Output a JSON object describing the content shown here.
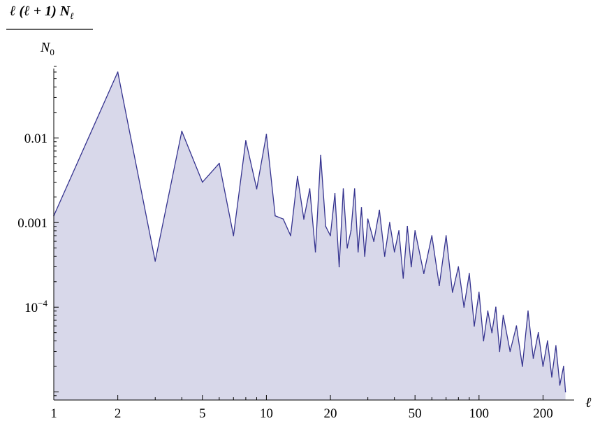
{
  "chart_data": {
    "type": "area",
    "scale": {
      "x": "log",
      "y": "log"
    },
    "xlim": [
      1,
      260
    ],
    "ylim": [
      8e-06,
      0.07
    ],
    "grid": false,
    "legend": "none",
    "colors": {
      "line": "#35338f",
      "fill": "#d8d8ea",
      "axis": "#000000"
    },
    "ylabel": {
      "numerator": "ℓ (ℓ + 1) N",
      "numerator_sub": "ℓ",
      "denominator": "N",
      "denominator_sub": "0"
    },
    "xlabel": "ℓ",
    "x_ticks_labeled": [
      {
        "value": 1,
        "label": "1"
      },
      {
        "value": 2,
        "label": "2"
      },
      {
        "value": 5,
        "label": "5"
      },
      {
        "value": 10,
        "label": "10"
      },
      {
        "value": 20,
        "label": "20"
      },
      {
        "value": 50,
        "label": "50"
      },
      {
        "value": 100,
        "label": "100"
      },
      {
        "value": 200,
        "label": "200"
      }
    ],
    "y_ticks_labeled": [
      {
        "value": 0.01,
        "label": "0.01"
      },
      {
        "value": 0.001,
        "label": "0.001"
      },
      {
        "value": 0.0001,
        "label": "10",
        "sup": "−4"
      }
    ],
    "series": [
      {
        "x": [
          1,
          2,
          3,
          4,
          5,
          6,
          7,
          8,
          9,
          10,
          11,
          12,
          13,
          14,
          15,
          16,
          17,
          18,
          19,
          20,
          21,
          22,
          23,
          24,
          25,
          26,
          27,
          28,
          29,
          30,
          32,
          34,
          36,
          38,
          40,
          42,
          44,
          46,
          48,
          50,
          55,
          60,
          65,
          70,
          75,
          80,
          85,
          90,
          95,
          100,
          105,
          110,
          115,
          120,
          125,
          130,
          140,
          150,
          160,
          170,
          180,
          190,
          200,
          210,
          220,
          230,
          240,
          250,
          255
        ],
        "y": [
          0.0012,
          0.06,
          0.00035,
          0.012,
          0.003,
          0.005,
          0.0007,
          0.0093,
          0.0025,
          0.011,
          0.0012,
          0.0011,
          0.0007,
          0.0035,
          0.0011,
          0.0025,
          0.00045,
          0.0062,
          0.0009,
          0.0007,
          0.0022,
          0.0003,
          0.0025,
          0.0005,
          0.0008,
          0.0025,
          0.00045,
          0.0015,
          0.0004,
          0.0011,
          0.0006,
          0.0014,
          0.0004,
          0.001,
          0.00045,
          0.0008,
          0.00022,
          0.0009,
          0.0003,
          0.0008,
          0.00025,
          0.0007,
          0.00018,
          0.0007,
          0.00015,
          0.0003,
          0.0001,
          0.00025,
          6e-05,
          0.00015,
          4e-05,
          9e-05,
          5e-05,
          0.0001,
          3e-05,
          8e-05,
          3e-05,
          6e-05,
          2e-05,
          9e-05,
          2.5e-05,
          5e-05,
          2e-05,
          4e-05,
          1.5e-05,
          3.5e-05,
          1.2e-05,
          2e-05,
          1e-05
        ]
      }
    ]
  }
}
